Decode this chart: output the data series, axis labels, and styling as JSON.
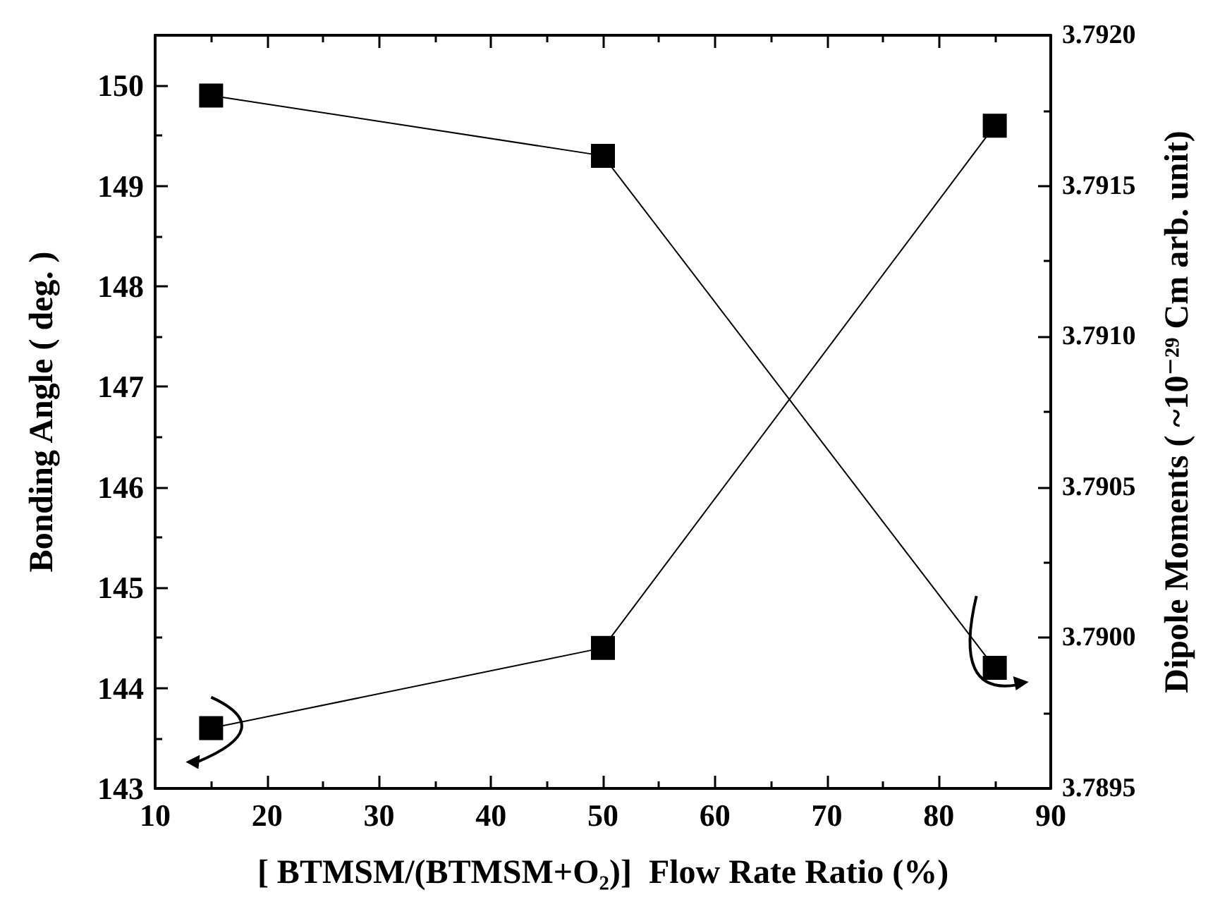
{
  "chart_data": {
    "type": "line",
    "xlabel": "[ BTMSM/(BTMSM+O₂)]  Flow Rate Ratio (%)",
    "ylabel": "Bonding Angle ( deg. )",
    "y2label": "Dipole Moments ( ~10⁻²⁹ Cm arb. unit)",
    "x": [
      15,
      50,
      85
    ],
    "series": [
      {
        "color": "#000000",
        "values": [
          143.6,
          144.4,
          149.6
        ]
      },
      {
        "color": "#000000",
        "values": [
          3.7918,
          3.7916,
          3.7899
        ],
        "axis": "y2"
      }
    ],
    "xlim": [
      10,
      90
    ],
    "xticks": [
      10,
      20,
      30,
      40,
      50,
      60,
      70,
      80,
      90
    ],
    "ylim": [
      143,
      150.5
    ],
    "yticks": [
      143,
      144,
      145,
      146,
      147,
      148,
      149,
      150
    ],
    "y2lim": [
      3.7895,
      3.792
    ],
    "y2ticks": [
      3.7895,
      {
        "value": 3.79,
        "label": "3.7900"
      },
      3.7905,
      {
        "value": 3.791,
        "label": "3.7910"
      },
      3.7915,
      {
        "value": 3.792,
        "label": "3.7920"
      }
    ],
    "marker": "square",
    "line_style": "solid",
    "grid": false
  }
}
